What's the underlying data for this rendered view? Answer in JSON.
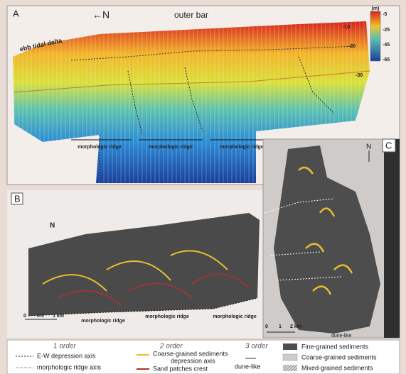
{
  "panel_a": {
    "label": "A",
    "north": "←N",
    "outer_bar": "outer bar",
    "ebb_tidal_delta": "ebb tidal delta",
    "colorbar": {
      "unit": "(m)",
      "ticks": [
        "-5",
        "-25",
        "-45",
        "-65"
      ]
    },
    "depth_labels": [
      "-10",
      "-20",
      "-30"
    ],
    "ridges": [
      "morphologic ridge",
      "morphologic ridge",
      "morphologic ridge"
    ]
  },
  "panel_b": {
    "label": "B",
    "north": "N",
    "scale": [
      "0",
      "0.5",
      "1 km"
    ],
    "ridges": [
      "morphologic ridge",
      "morphologic ridge",
      "morphologic ridge"
    ]
  },
  "panel_c": {
    "label": "C",
    "north": "N",
    "scale": [
      "0",
      "1",
      "2 km"
    ],
    "note": "dune-like"
  },
  "legend": {
    "first": {
      "title": "1 order",
      "items": [
        "E-W depression axis",
        "morphologic ridge axis"
      ]
    },
    "second": {
      "title": "2 order",
      "items": [
        "Coarse-grained sediments",
        "depression axis",
        "Sand patches crest"
      ]
    },
    "third": {
      "title": "3 order",
      "items": [
        "dune-like"
      ]
    },
    "sediments": [
      "Fine-grained sediments",
      "Coarse-grained sediments",
      "Mixed-grained sediments"
    ]
  }
}
